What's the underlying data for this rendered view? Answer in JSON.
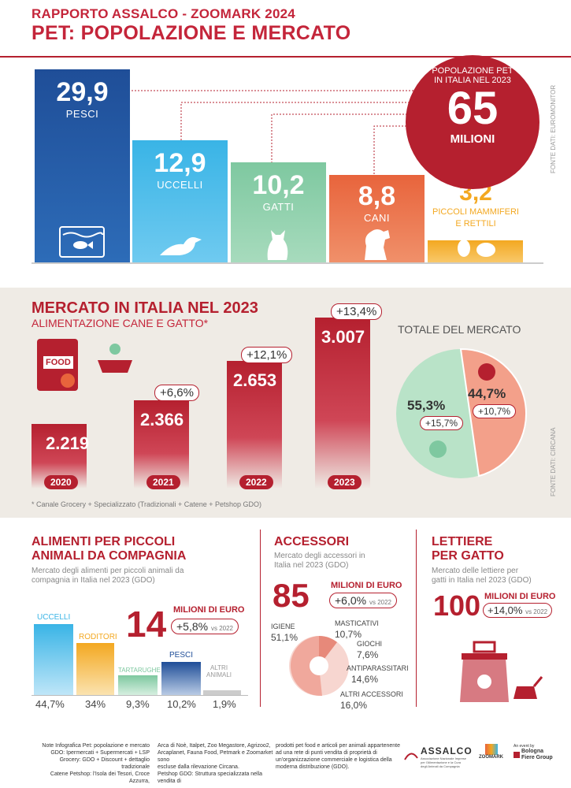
{
  "header": {
    "line1": "RAPPORTO ASSALCO - ZOOMARK 2024",
    "line2": "PET: POPOLAZIONE E MERCATO"
  },
  "population": {
    "bars": [
      {
        "value": "29,9",
        "label": "PESCI"
      },
      {
        "value": "12,9",
        "label": "UCCELLI"
      },
      {
        "value": "10,2",
        "label": "GATTI"
      },
      {
        "value": "8,8",
        "label": "CANI"
      },
      {
        "value": "3,2",
        "label": "PICCOLI MAMMIFERI\nE RETTILI"
      }
    ],
    "total_caption": "POPOLAZIONE PET\nIN ITALIA NEL 2023",
    "total_value": "65",
    "total_unit": "MILIONI",
    "source": "FONTE DATI: EUROMONITOR",
    "colors": {
      "pesci": "#1f4e98",
      "uccelli": "#39b4e6",
      "gatti": "#7ec8a0",
      "cani": "#e8643c",
      "piccoli": "#f3a821",
      "accent": "#b5202f"
    }
  },
  "market": {
    "title": "MERCATO IN ITALIA NEL 2023",
    "subtitle": "ALIMENTAZIONE CANE E GATTO*",
    "food_label": "FOOD",
    "years": [
      {
        "year": "2020",
        "value": "2.219",
        "change": ""
      },
      {
        "year": "2021",
        "value": "2.366",
        "change": "+6,6%"
      },
      {
        "year": "2022",
        "value": "2.653",
        "change": "+12,1%"
      },
      {
        "year": "2023",
        "value": "3.007",
        "change": "+13,4%"
      }
    ],
    "total_title": "TOTALE DEL MERCATO",
    "pie": [
      {
        "pct": "55,3%",
        "change": "+15,7%",
        "fraction": 0.553,
        "color": "#b9e3c8"
      },
      {
        "pct": "44,7%",
        "change": "+10,7%",
        "fraction": 0.447,
        "color": "#f3a08a"
      }
    ],
    "footnote": "* Canale Grocery + Specializzato (Tradizionali + Catene + Petshop GDO)",
    "source": "FONTE DATI: CIRCANA"
  },
  "small_animals": {
    "title": "ALIMENTI PER PICCOLI\nANIMALI DA COMPAGNIA",
    "subtitle": "Mercato degli alimenti per piccoli animali da\ncompagnia in Italia nel 2023 (GDO)",
    "value": "14",
    "unit": "MILIONI DI EURO",
    "change": "+5,8%",
    "change_ref": "vs 2022",
    "categories": [
      {
        "label": "UCCELLI",
        "pct": "44,7%"
      },
      {
        "label": "RODITORI",
        "pct": "34%"
      },
      {
        "label": "TARTARUGHE",
        "pct": "9,3%"
      },
      {
        "label": "PESCI",
        "pct": "10,2%"
      },
      {
        "label": "ALTRI\nANIMALI",
        "pct": "1,9%"
      }
    ]
  },
  "accessories": {
    "title": "ACCESSORI",
    "subtitle": "Mercato degli accessori in\nItalia nel 2023 (GDO)",
    "value": "85",
    "unit": "MILIONI DI EURO",
    "change": "+6,0%",
    "change_ref": "vs 2022",
    "items": [
      {
        "label": "IGIENE",
        "pct": "51,1%"
      },
      {
        "label": "MASTICATIVI",
        "pct": "10,7%"
      },
      {
        "label": "GIOCHI",
        "pct": "7,6%"
      },
      {
        "label": "ANTIPARASSITARI",
        "pct": "14,6%"
      },
      {
        "label": "ALTRI ACCESSORI",
        "pct": "16,0%"
      }
    ]
  },
  "litter": {
    "title": "LETTIERE\nPER GATTO",
    "subtitle": "Mercato delle lettiere per\ngatti in Italia nel 2023 (GDO)",
    "value": "100",
    "unit": "MILIONI DI EURO",
    "change": "+14,0%",
    "change_ref": "vs 2022"
  },
  "notes": {
    "col1": "Note Infografica Pet: popolazione e mercato\nGDO: Ipermercati + Supermercati + LSP\nGrocery: GDO + Discount + dettaglio tradizionale\nCatene Petshop: l'Isola dei Tesori, Croce Azzurra,",
    "col2": "Arca di Noè, Italpet, Zoo Megastore, Agrizoo2,\nArcaplanet, Fauna Food, Petmark e Zoomarket sono\nescluse dalla rilevazione Circana.\nPetshop GDO: Struttura specializzata nella vendita di",
    "col3": "prodotti pet food e articoli per animali appartenente\nad una rete di punti vendita di proprietà di\nun'organizzazione commerciale e logistica della\nmoderna distribuzione (GDO)."
  },
  "logos": {
    "assalco": "ASSALCO",
    "assalco_sub": "Associazione Nazionale Imprese\nper l'Alimentazione e la Cura\ndegli Animali da Compagnia",
    "zoomark": "ZOOMARK",
    "event_by": "An event by",
    "bologna": "Bologna\nFiere Group"
  }
}
